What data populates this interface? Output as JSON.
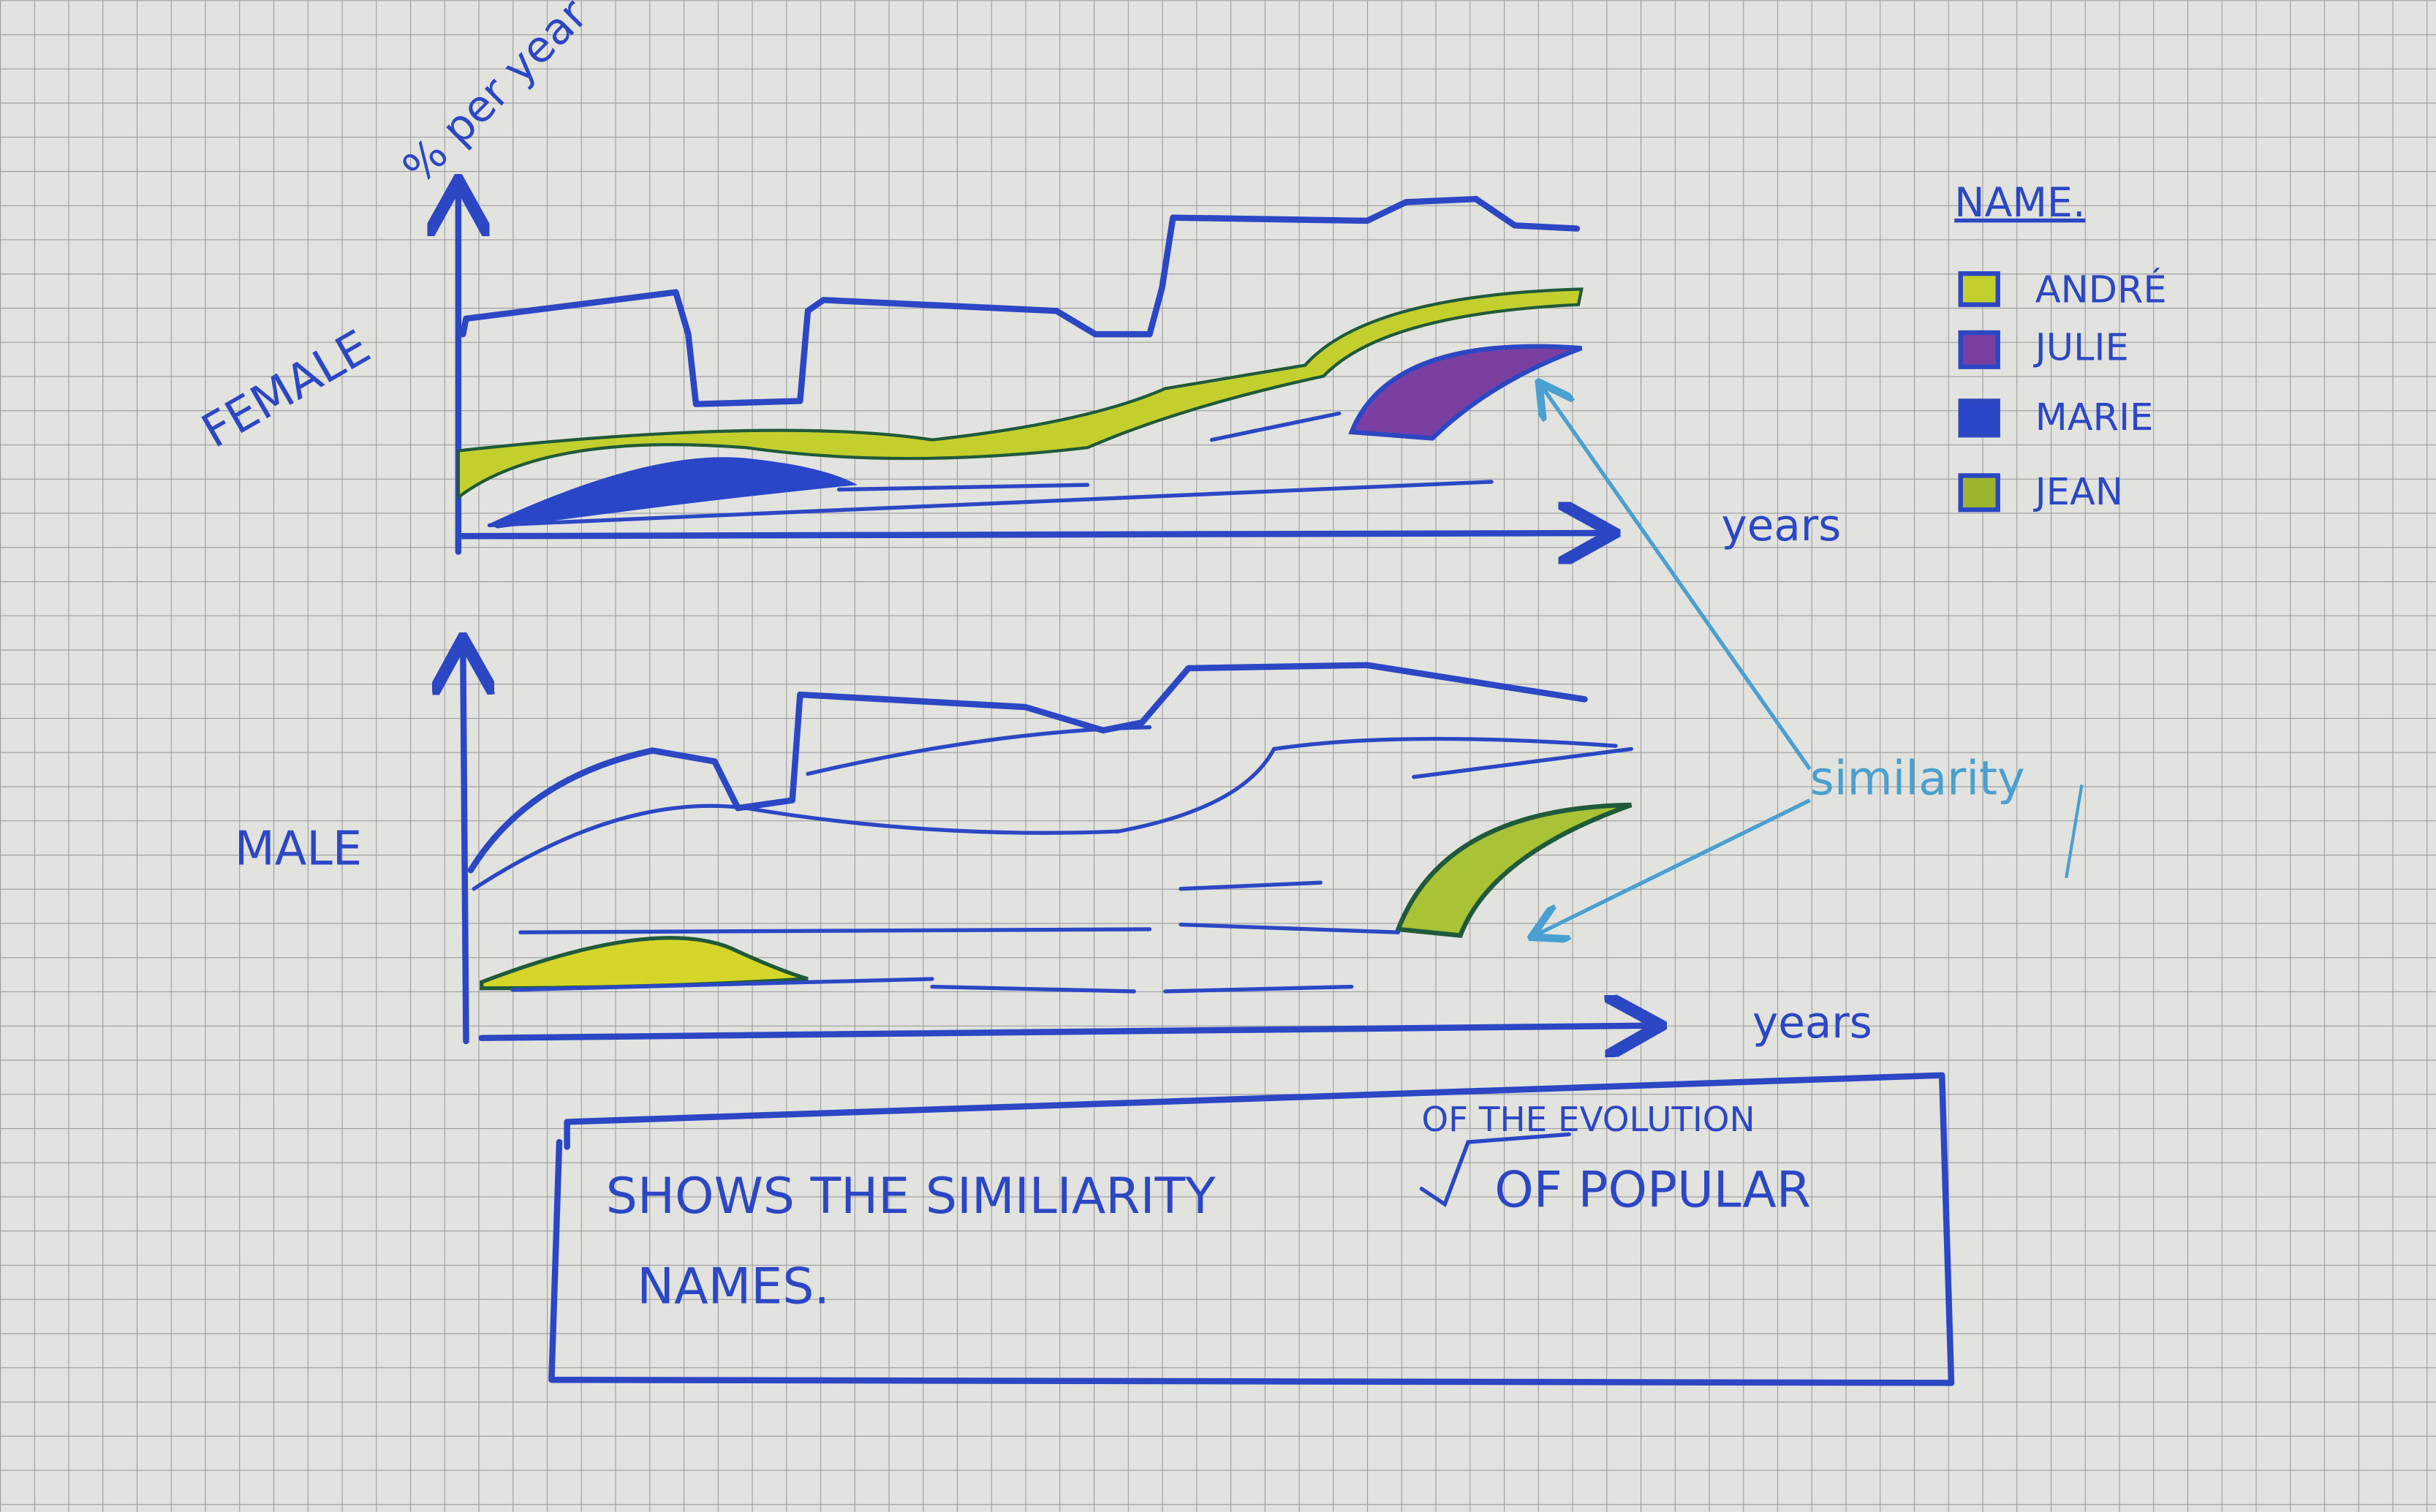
{
  "y_axis_label": "% per year",
  "panels": [
    {
      "label": "FEMALE",
      "x_axis_label": "years"
    },
    {
      "label": "MALE",
      "x_axis_label": "years"
    }
  ],
  "legend": {
    "title": "NAME.",
    "items": [
      "ANDRÉ",
      "JULIE",
      "MARIE",
      "JEAN"
    ]
  },
  "annotation": "similarity",
  "caption": {
    "line1": "SHOWS THE SIMILIARITY",
    "insertion": "OF THE EVOLUTION",
    "line1_end": "OF POPULAR",
    "line2": "NAMES."
  }
}
